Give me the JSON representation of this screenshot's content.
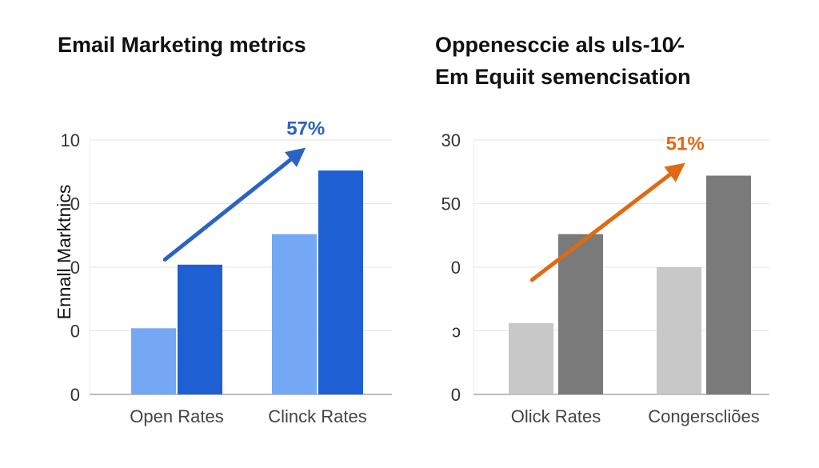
{
  "chart_data": [
    {
      "type": "bar",
      "title": "Email Marketing metrics",
      "ylabel": "Ennall Marktnics",
      "yticks": [
        "10",
        "0",
        "0",
        "0",
        "0"
      ],
      "ylim": [
        0,
        100
      ],
      "grid": true,
      "categories": [
        "Open Rates",
        "Clinck Rates"
      ],
      "series": [
        {
          "values": [
            26,
            63
          ],
          "color": "#74a8f5"
        },
        {
          "values": [
            51,
            88
          ],
          "color": "#1f5fd4"
        }
      ],
      "annotation": {
        "text": "57%",
        "color": "#2a63c4",
        "from": [
          0.38,
          53
        ],
        "to": [
          1.38,
          97
        ]
      }
    },
    {
      "type": "bar",
      "title": "Oppenesccie als uls-10⁄-\nEm Equiit semencisation",
      "yticks": [
        "30",
        "50",
        "0",
        "ɔ",
        "0"
      ],
      "ylim": [
        0,
        100
      ],
      "grid": true,
      "categories": [
        "Olick Rates",
        "Congerscliões"
      ],
      "series": [
        {
          "values": [
            28,
            50
          ],
          "color": "#c8c8c8"
        },
        {
          "values": [
            63,
            86
          ],
          "color": "#7a7a7a"
        }
      ],
      "annotation": {
        "text": "51%",
        "color": "#e06a12",
        "from": [
          0.27,
          45
        ],
        "to": [
          1.32,
          91
        ]
      }
    }
  ]
}
